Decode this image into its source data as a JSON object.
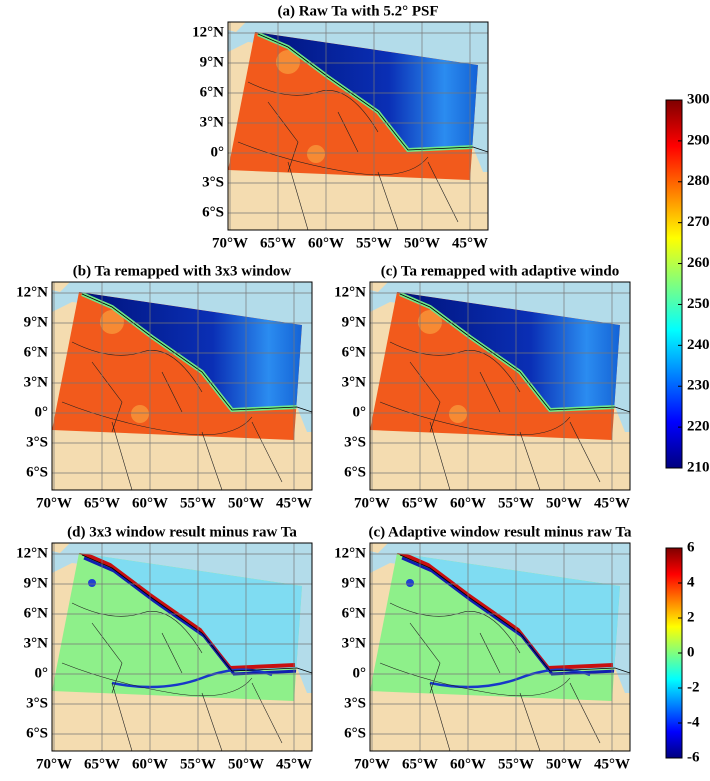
{
  "figure": {
    "panels": [
      {
        "title": "(a) Raw Ta with 5.2° PSF",
        "type": "ta"
      },
      {
        "title": "(b) Ta remapped with 3x3 window",
        "type": "ta"
      },
      {
        "title": "(c) Ta remapped with adaptive windo",
        "type": "ta"
      },
      {
        "title": "(d) 3x3 window result minus raw Ta",
        "type": "difference"
      },
      {
        "title": "(c) Adaptive window result minus raw Ta",
        "type": "difference"
      }
    ],
    "lat_labels": [
      "12°N",
      "9°N",
      "6°N",
      "3°N",
      "0°",
      "3°S",
      "6°S"
    ],
    "lon_labels": [
      "70°W",
      "65°W",
      "60°W",
      "55°W",
      "50°W",
      "45°W"
    ],
    "colormap": [
      "#00007f",
      "#0000ff",
      "#007fff",
      "#00ffff",
      "#7fff7f",
      "#ffff00",
      "#ff7f00",
      "#ff0000",
      "#7f0000"
    ],
    "colorbars": [
      {
        "ylim": [
          210,
          300
        ],
        "ticks": [
          210,
          220,
          230,
          240,
          250,
          260,
          270,
          280,
          290,
          300
        ]
      },
      {
        "ylim": [
          -6,
          6
        ],
        "ticks": [
          -6,
          -4,
          -2,
          0,
          2,
          4,
          6
        ]
      }
    ]
  }
}
